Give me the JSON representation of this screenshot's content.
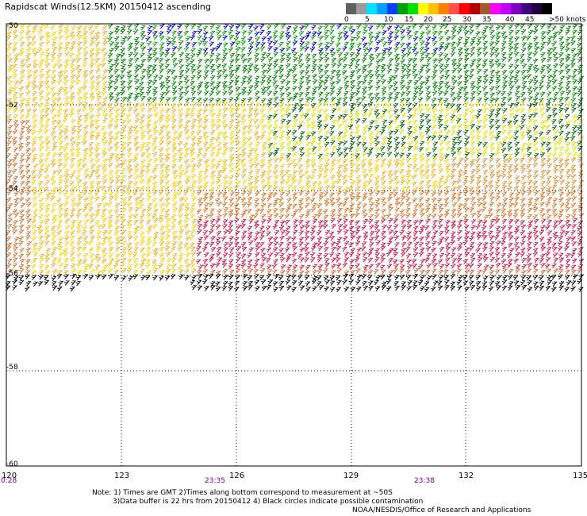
{
  "title": "Rapidscat Winds(12.5KM) 20150412 ascending",
  "legend": {
    "labels": [
      "0",
      "5",
      "10",
      "15",
      "20",
      "25",
      "30",
      "35",
      "40",
      "45",
      ">50 knots"
    ],
    "colors": [
      "#606060",
      "#9a9a9a",
      "#00e0ff",
      "#00a0ff",
      "#0040ff",
      "#00a000",
      "#00e000",
      "#ffff00",
      "#ffc000",
      "#ff8000",
      "#ff5050",
      "#ff0000",
      "#b40000",
      "#a05a2c",
      "#ff00ff",
      "#c000ff",
      "#8000c0",
      "#400080",
      "#200040",
      "#000000"
    ]
  },
  "latitudes": [
    "-50",
    "-52",
    "-54",
    "-56",
    "-58",
    "-60"
  ],
  "longitudes": [
    "120",
    "123",
    "126",
    "129",
    "132",
    "135"
  ],
  "times": [
    "0:28",
    "23:35",
    "23:38"
  ],
  "notes": {
    "line1": "Note: 1) Times are GMT 2)Times along bottom correspond to measurement at ~50S",
    "line2": "3)Data buffer is 22 hrs from 20150412 4) Black circles indicate possible contamination",
    "credit": "NOAA/NESDIS/Office of Research and Applications"
  }
}
